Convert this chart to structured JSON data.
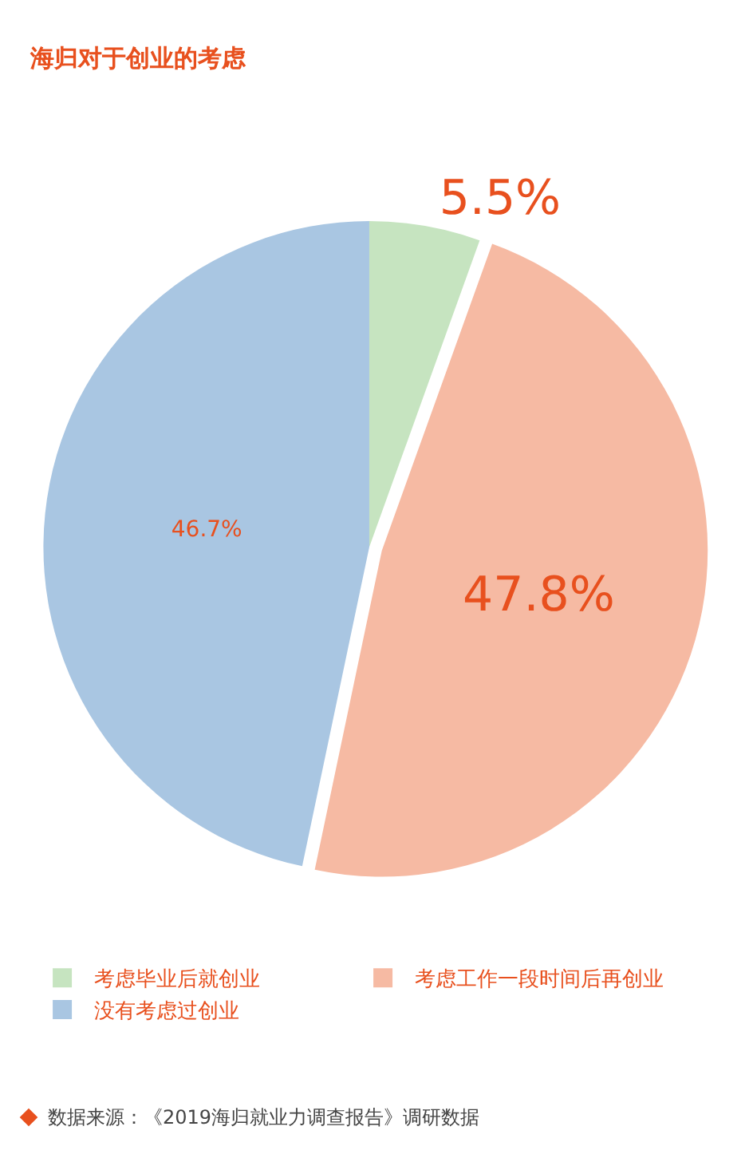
{
  "chart_data": {
    "type": "pie",
    "title": "海归对于创业的考虑",
    "categories": [
      "考虑毕业后就创业",
      "考虑工作一段时间后再创业",
      "没有考虑过创业"
    ],
    "values": [
      5.5,
      47.8,
      46.7
    ],
    "value_labels": [
      "5.5%",
      "47.8%",
      "46.7%"
    ],
    "colors": [
      "#c6e4c0",
      "#f6baa3",
      "#a9c6e2"
    ],
    "legend": "bottom",
    "annotations": [
      "数据来源：《2019海归就业力调查报告》调研数据"
    ]
  }
}
